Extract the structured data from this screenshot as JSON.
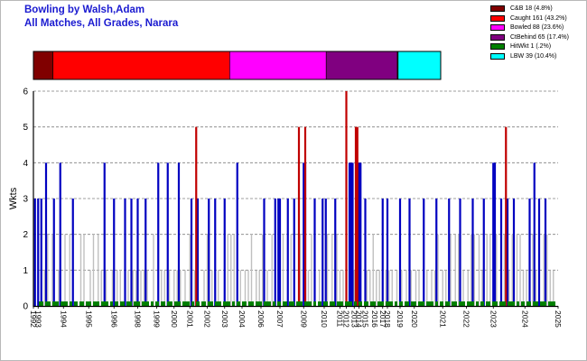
{
  "header": {
    "title_line1": "Bowling by Walsh,Adam",
    "title_line2": "All Matches, All Grades, Narara"
  },
  "legend": [
    {
      "label": "C&B 18 (4.8%)",
      "color": "#800000"
    },
    {
      "label": "Caught 161 (43.2%)",
      "color": "#ff0000"
    },
    {
      "label": "Bowled 88 (23.6%)",
      "color": "#ff00ff"
    },
    {
      "label": "CtBehind 65 (17.4%)",
      "color": "#800080"
    },
    {
      "label": "HitWkt 1 (.2%)",
      "color": "#008000"
    },
    {
      "label": "LBW 39 (10.4%)",
      "color": "#00ffff"
    }
  ],
  "chart_data": [
    {
      "type": "stacked-bar",
      "description_of_values": "dismissal mode percentages",
      "segments": [
        {
          "name": "C&B",
          "value": 4.8,
          "color": "#800000"
        },
        {
          "name": "Caught",
          "value": 43.2,
          "color": "#ff0000"
        },
        {
          "name": "Bowled",
          "value": 23.6,
          "color": "#ff00ff"
        },
        {
          "name": "CtBehind",
          "value": 17.4,
          "color": "#800080"
        },
        {
          "name": "HitWkt",
          "value": 0.2,
          "color": "#008000"
        },
        {
          "name": "LBW",
          "value": 10.4,
          "color": "#00ffff"
        }
      ]
    },
    {
      "type": "bar",
      "ylabel": "Wkts",
      "ylim": [
        0,
        6
      ],
      "yticks": [
        "0",
        "1",
        "2",
        "3",
        "4",
        "5",
        "6"
      ],
      "grid": true,
      "x_range": [
        1992.0,
        2025.2
      ],
      "xtick_labels": [
        {
          "label": "1992",
          "x": 1992.0
        },
        {
          "label": "1993",
          "x": 1992.3
        },
        {
          "label": "1994",
          "x": 1993.9
        },
        {
          "label": "1995",
          "x": 1995.5
        },
        {
          "label": "1996",
          "x": 1997.1
        },
        {
          "label": "1998",
          "x": 1998.6
        },
        {
          "label": "1999",
          "x": 1999.8
        },
        {
          "label": "2000",
          "x": 2000.9
        },
        {
          "label": "2001",
          "x": 2001.9
        },
        {
          "label": "2002",
          "x": 2003.0
        },
        {
          "label": "2003",
          "x": 2004.1
        },
        {
          "label": "2004",
          "x": 2005.2
        },
        {
          "label": "2006",
          "x": 2006.4
        },
        {
          "label": "2007",
          "x": 2007.6
        },
        {
          "label": "2009",
          "x": 2009.1
        },
        {
          "label": "2010",
          "x": 2010.4
        },
        {
          "label": "2011",
          "x": 2011.4
        },
        {
          "label": "2012",
          "x": 2011.8
        },
        {
          "label": "2013",
          "x": 2012.3
        },
        {
          "label": "2014",
          "x": 2012.6
        },
        {
          "label": "2015",
          "x": 2013.0
        },
        {
          "label": "2016",
          "x": 2013.6
        },
        {
          "label": "2017",
          "x": 2014.1
        },
        {
          "label": "2018",
          "x": 2014.4
        },
        {
          "label": "2019",
          "x": 2015.2
        },
        {
          "label": "2020",
          "x": 2016.1
        },
        {
          "label": "2021",
          "x": 2017.9
        },
        {
          "label": "2022",
          "x": 2019.4
        },
        {
          "label": "2023",
          "x": 2021.1
        },
        {
          "label": "2024",
          "x": 2023.1
        },
        {
          "label": "2025",
          "x": 2025.2
        }
      ],
      "series": [
        {
          "name": "1-2 wickets",
          "color": "#c0c0c0",
          "points": [
            [
              1992.5,
              2
            ],
            [
              1992.7,
              1
            ],
            [
              1992.9,
              2
            ],
            [
              1993.2,
              2
            ],
            [
              1993.6,
              1
            ],
            [
              1994.0,
              2
            ],
            [
              1994.3,
              2
            ],
            [
              1994.5,
              1
            ],
            [
              1995.0,
              2
            ],
            [
              1995.2,
              2
            ],
            [
              1995.6,
              1
            ],
            [
              1995.8,
              2
            ],
            [
              1996.1,
              2
            ],
            [
              1996.3,
              1
            ],
            [
              1996.6,
              1
            ],
            [
              1997.0,
              1
            ],
            [
              1997.3,
              1
            ],
            [
              1997.5,
              1
            ],
            [
              1997.8,
              2
            ],
            [
              1998.0,
              1
            ],
            [
              1998.3,
              1
            ],
            [
              1998.5,
              1
            ],
            [
              1998.8,
              1
            ],
            [
              1999.0,
              1
            ],
            [
              1999.2,
              1
            ],
            [
              1999.6,
              2
            ],
            [
              1999.9,
              1
            ],
            [
              2000.1,
              1
            ],
            [
              2000.3,
              1
            ],
            [
              2000.6,
              1
            ],
            [
              2000.9,
              1
            ],
            [
              2001.1,
              1
            ],
            [
              2001.3,
              1
            ],
            [
              2001.6,
              1
            ],
            [
              2001.9,
              2
            ],
            [
              2002.2,
              1
            ],
            [
              2002.4,
              1
            ],
            [
              2002.8,
              1
            ],
            [
              2003.0,
              2
            ],
            [
              2003.3,
              1
            ],
            [
              2003.5,
              2
            ],
            [
              2003.7,
              1
            ],
            [
              2004.1,
              2
            ],
            [
              2004.3,
              2
            ],
            [
              2004.5,
              2
            ],
            [
              2004.7,
              2
            ],
            [
              2004.9,
              2
            ],
            [
              2005.1,
              1
            ],
            [
              2005.4,
              1
            ],
            [
              2005.6,
              1
            ],
            [
              2005.8,
              2
            ],
            [
              2006.1,
              1
            ],
            [
              2006.3,
              1
            ],
            [
              2006.5,
              2
            ],
            [
              2006.8,
              1
            ],
            [
              2007.1,
              2
            ],
            [
              2007.3,
              1
            ],
            [
              2007.5,
              1
            ],
            [
              2007.8,
              2
            ],
            [
              2008.1,
              1
            ],
            [
              2008.3,
              2
            ],
            [
              2008.5,
              1
            ],
            [
              2008.9,
              2
            ],
            [
              2009.2,
              1
            ],
            [
              2009.4,
              1
            ],
            [
              2009.6,
              2
            ],
            [
              2009.8,
              1
            ],
            [
              2010.1,
              1
            ],
            [
              2010.3,
              1
            ],
            [
              2010.6,
              2
            ],
            [
              2010.9,
              2
            ],
            [
              2011.2,
              2
            ],
            [
              2011.4,
              1
            ],
            [
              2011.6,
              1
            ],
            [
              2011.8,
              1
            ],
            [
              2012.0,
              1
            ],
            [
              2012.3,
              1
            ],
            [
              2012.5,
              1
            ],
            [
              2012.7,
              1
            ],
            [
              2013.1,
              1
            ],
            [
              2013.3,
              1
            ],
            [
              2013.5,
              2
            ],
            [
              2013.7,
              1
            ],
            [
              2013.9,
              1
            ],
            [
              2014.1,
              1
            ],
            [
              2014.3,
              1
            ],
            [
              2014.5,
              1
            ],
            [
              2014.7,
              1
            ],
            [
              2015.0,
              1
            ],
            [
              2015.3,
              1
            ],
            [
              2015.6,
              1
            ],
            [
              2015.9,
              1
            ],
            [
              2016.2,
              1
            ],
            [
              2016.4,
              1
            ],
            [
              2016.7,
              1
            ],
            [
              2016.9,
              1
            ],
            [
              2017.2,
              1
            ],
            [
              2017.4,
              1
            ],
            [
              2017.6,
              2
            ],
            [
              2017.9,
              1
            ],
            [
              2018.1,
              1
            ],
            [
              2018.4,
              2
            ],
            [
              2018.7,
              2
            ],
            [
              2018.9,
              2
            ],
            [
              2019.2,
              1
            ],
            [
              2019.5,
              1
            ],
            [
              2019.7,
              2
            ],
            [
              2019.9,
              2
            ],
            [
              2020.2,
              2
            ],
            [
              2020.4,
              1
            ],
            [
              2020.7,
              2
            ],
            [
              2020.9,
              2
            ],
            [
              2021.1,
              1
            ],
            [
              2021.3,
              2
            ],
            [
              2021.6,
              2
            ],
            [
              2021.8,
              2
            ],
            [
              2022.1,
              1
            ],
            [
              2022.3,
              2
            ],
            [
              2022.6,
              2
            ],
            [
              2022.8,
              2
            ],
            [
              2023.0,
              1
            ],
            [
              2023.2,
              1
            ],
            [
              2023.4,
              1
            ],
            [
              2023.6,
              2
            ],
            [
              2023.8,
              1
            ],
            [
              2024.0,
              2
            ],
            [
              2024.3,
              2
            ],
            [
              2024.5,
              2
            ],
            [
              2024.7,
              1
            ],
            [
              2024.9,
              1
            ]
          ]
        },
        {
          "name": "3-4 wickets",
          "color": "#0000c0",
          "points": [
            [
              1992.1,
              3
            ],
            [
              1992.3,
              3
            ],
            [
              1992.5,
              3
            ],
            [
              1992.8,
              4
            ],
            [
              1993.3,
              3
            ],
            [
              1993.7,
              4
            ],
            [
              1994.5,
              3
            ],
            [
              1996.5,
              4
            ],
            [
              1997.1,
              3
            ],
            [
              1997.8,
              3
            ],
            [
              1998.2,
              3
            ],
            [
              1998.6,
              3
            ],
            [
              1999.1,
              3
            ],
            [
              1999.9,
              4
            ],
            [
              2000.5,
              4
            ],
            [
              2001.2,
              4
            ],
            [
              2002.0,
              3
            ],
            [
              2002.4,
              3
            ],
            [
              2003.1,
              3
            ],
            [
              2003.5,
              3
            ],
            [
              2004.1,
              3
            ],
            [
              2004.9,
              4
            ],
            [
              2006.6,
              3
            ],
            [
              2007.3,
              3
            ],
            [
              2007.5,
              3
            ],
            [
              2007.6,
              3
            ],
            [
              2008.1,
              3
            ],
            [
              2008.5,
              3
            ],
            [
              2009.1,
              4
            ],
            [
              2009.2,
              4
            ],
            [
              2009.8,
              3
            ],
            [
              2010.3,
              3
            ],
            [
              2010.5,
              3
            ],
            [
              2011.1,
              3
            ],
            [
              2012.0,
              4
            ],
            [
              2012.1,
              4
            ],
            [
              2012.2,
              4
            ],
            [
              2012.6,
              4
            ],
            [
              2012.7,
              4
            ],
            [
              2013.0,
              3
            ],
            [
              2014.1,
              3
            ],
            [
              2014.4,
              3
            ],
            [
              2015.2,
              3
            ],
            [
              2015.8,
              3
            ],
            [
              2016.7,
              3
            ],
            [
              2017.5,
              3
            ],
            [
              2018.3,
              3
            ],
            [
              2019.0,
              3
            ],
            [
              2019.8,
              3
            ],
            [
              2020.5,
              3
            ],
            [
              2021.1,
              4
            ],
            [
              2021.2,
              4
            ],
            [
              2021.6,
              3
            ],
            [
              2022.0,
              3
            ],
            [
              2022.4,
              3
            ],
            [
              2023.4,
              3
            ],
            [
              2023.7,
              4
            ],
            [
              2024.0,
              3
            ],
            [
              2024.4,
              3
            ]
          ]
        },
        {
          "name": "5+ wickets",
          "color": "#c00000",
          "points": [
            [
              2002.3,
              5
            ],
            [
              2008.8,
              5
            ],
            [
              2009.2,
              5
            ],
            [
              2011.8,
              6
            ],
            [
              2012.4,
              5
            ],
            [
              2012.5,
              5
            ],
            [
              2021.9,
              5
            ]
          ]
        },
        {
          "name": "baseline",
          "color": "#008000",
          "points": []
        }
      ]
    }
  ]
}
